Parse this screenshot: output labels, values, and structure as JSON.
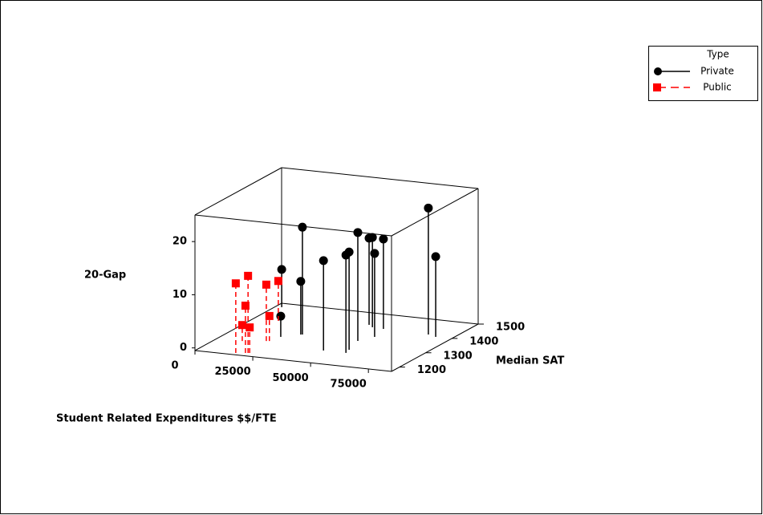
{
  "chart_data": {
    "type": "scatter3d",
    "xlabel": "Student Related Expenditures $$/FTE",
    "ylabel": "Median SAT",
    "zlabel": "20-Gap",
    "xlim": [
      0,
      85000
    ],
    "xticks": [
      0,
      25000,
      50000,
      75000
    ],
    "ylim": [
      1170,
      1500
    ],
    "yticks": [
      1200,
      1300,
      1400,
      1500
    ],
    "zlim": [
      -0.5,
      25
    ],
    "zticks": [
      0,
      10,
      20
    ],
    "legend": {
      "title": "Type",
      "position": "top-right"
    },
    "series": [
      {
        "name": "Private",
        "color": "#000000",
        "marker": "circle",
        "linestyle": "solid",
        "x": [
          28300,
          2650,
          22000,
          27700,
          46500,
          56200,
          55300,
          52600,
          46000,
          48800,
          56000,
          53900,
          73900,
          78100
        ],
        "y": [
          1330,
          1477,
          1303,
          1329,
          1250,
          1250,
          1270,
          1327,
          1428,
          1416,
          1361,
          1413,
          1408,
          1399
        ],
        "z": [
          19.7,
          6.6,
          3.4,
          9.5,
          16.4,
          17.9,
          17.9,
          19.9,
          15.8,
          16.4,
          15.2,
          16.4,
          23.3,
          14.6
        ]
      },
      {
        "name": "Public",
        "color": "#ff0000",
        "marker": "square",
        "linestyle": "dashed",
        "x": [
          16400,
          20800,
          19900,
          10800,
          21400,
          19500,
          10500,
          20600
        ],
        "y": [
          1181,
          1189,
          1187,
          1255,
          1190,
          1270,
          1395,
          1272
        ],
        "z": [
          12.6,
          14.0,
          8.4,
          2.5,
          4.3,
          10.1,
          7.0,
          4.2
        ]
      }
    ]
  }
}
